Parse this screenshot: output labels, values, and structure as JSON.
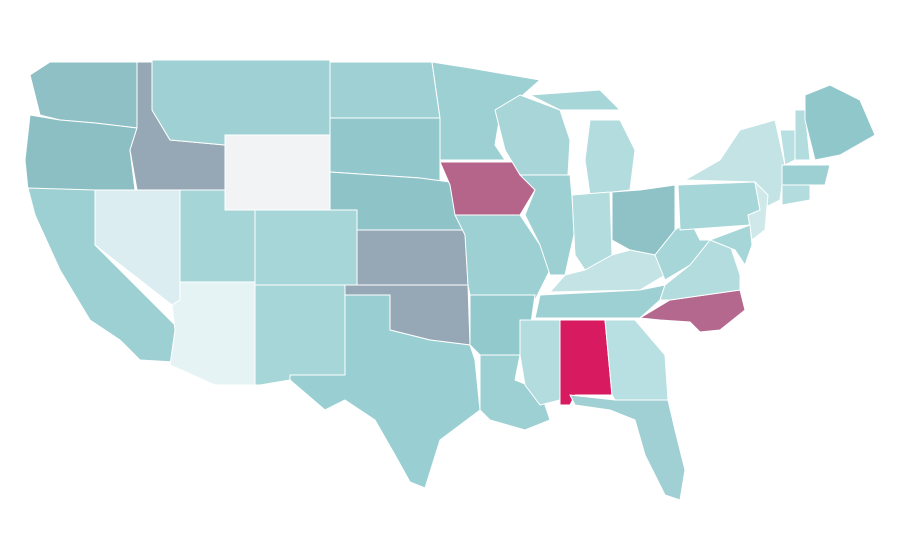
{
  "map": {
    "regions": [
      {
        "color": "#8fc0c6"
      },
      {
        "color": "#8cbfc4"
      },
      {
        "color": "#9dd0d3"
      },
      {
        "color": "#dcedf1"
      },
      {
        "color": "#96a8b5"
      },
      {
        "color": "#9fd1d4"
      },
      {
        "color": "#f2f3f4"
      },
      {
        "color": "#a6d5d7"
      },
      {
        "color": "#e6f3f4"
      },
      {
        "color": "#a6d6d8"
      },
      {
        "color": "#a6d6d8"
      },
      {
        "color": "#9fd1d4"
      },
      {
        "color": "#92c8cc"
      },
      {
        "color": "#8ec4c8"
      },
      {
        "color": "#96a8b5"
      },
      {
        "color": "#96a8b5"
      },
      {
        "color": "#99cfd2"
      },
      {
        "color": "#9dd0d3"
      },
      {
        "color": "#b5648a"
      },
      {
        "color": "#9dd0d3"
      },
      {
        "color": "#91c9cd"
      },
      {
        "color": "#9dd0d3"
      },
      {
        "color": "#a8d6d8"
      },
      {
        "color": "#9dd0d3"
      },
      {
        "color": "#b2dcde"
      },
      {
        "color": "#a6d6d8"
      },
      {
        "color": "#b2dcde"
      },
      {
        "color": "#8fc2c7"
      },
      {
        "color": "#c3e3e5"
      },
      {
        "color": "#9dd0d3"
      },
      {
        "color": "#b2dcde"
      },
      {
        "color": "#d81b60"
      },
      {
        "color": "#b8dfe1"
      },
      {
        "color": "#a0d0d3"
      },
      {
        "color": "#b5688e"
      },
      {
        "color": "#b2dcde"
      },
      {
        "color": "#a6d6d8"
      },
      {
        "color": "#a6d6d8"
      },
      {
        "color": "#c3e3e5"
      },
      {
        "color": "#b8dfe1"
      },
      {
        "color": "#b2dcde"
      },
      {
        "color": "#8fc7cb"
      },
      {
        "color": "#9dd0d3"
      },
      {
        "color": "#b2dcde"
      },
      {
        "color": "#cfe9ea"
      },
      {
        "color": "#a6d6d8"
      }
    ]
  }
}
